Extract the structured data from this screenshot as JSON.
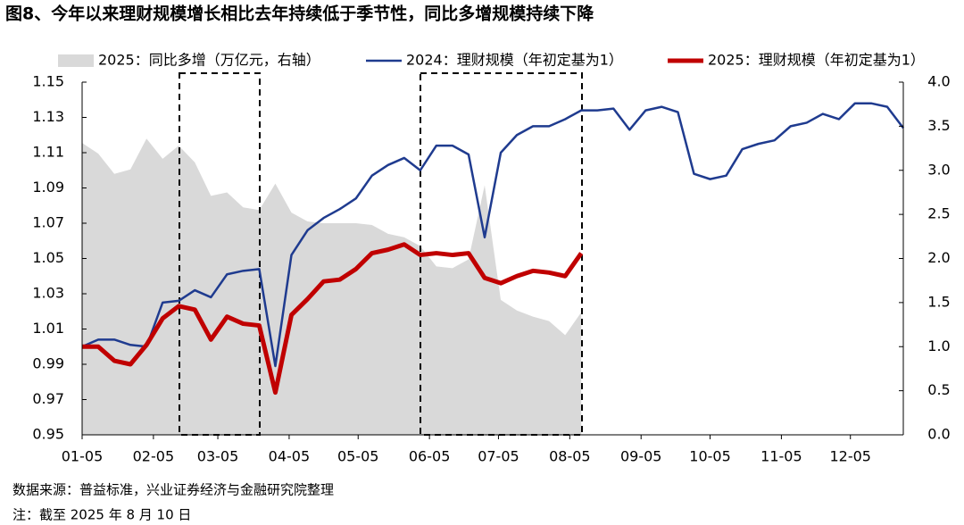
{
  "title": "图8、今年以来理财规模增长相比去年持续低于季节性，同比多增规模持续下降",
  "notes": [
    "数据来源：普益标准，兴业证券经济与金融研究院整理",
    "注：截至 2025 年 8 月 10 日"
  ],
  "chart_data": {
    "type": "line",
    "legend": "top",
    "x": [
      5,
      12,
      19,
      26,
      33,
      40,
      47,
      54,
      61,
      68,
      75,
      82,
      89,
      96,
      103,
      110,
      117,
      124,
      131,
      138,
      145,
      152,
      159,
      166,
      173,
      180,
      187,
      194,
      201,
      208,
      215,
      222,
      229,
      236,
      243,
      250,
      257,
      264,
      271,
      278,
      285,
      292,
      299,
      306,
      313,
      320,
      327,
      334,
      341,
      348,
      355,
      362
    ],
    "xlim": [
      5,
      362
    ],
    "xticks": [
      {
        "value": 5,
        "label": "01-05"
      },
      {
        "value": 36,
        "label": "02-05"
      },
      {
        "value": 64,
        "label": "03-05"
      },
      {
        "value": 95,
        "label": "04-05"
      },
      {
        "value": 125,
        "label": "05-05"
      },
      {
        "value": 156,
        "label": "06-05"
      },
      {
        "value": 186,
        "label": "07-05"
      },
      {
        "value": 217,
        "label": "08-05"
      },
      {
        "value": 248,
        "label": "09-05"
      },
      {
        "value": 278,
        "label": "10-05"
      },
      {
        "value": 309,
        "label": "11-05"
      },
      {
        "value": 339,
        "label": "12-05"
      }
    ],
    "ylim": [
      0.95,
      1.15
    ],
    "yticks": [
      0.95,
      0.97,
      0.99,
      1.01,
      1.03,
      1.05,
      1.07,
      1.09,
      1.11,
      1.13,
      1.15
    ],
    "y2lim": [
      0,
      4
    ],
    "y2ticks": [
      {
        "value": 0,
        "label": "0.0"
      },
      0.5,
      {
        "value": 1,
        "label": "1.0"
      },
      1.5,
      {
        "value": 2,
        "label": "2.0"
      },
      2.5,
      {
        "value": 3,
        "label": "3.0"
      },
      3.5,
      {
        "value": 4,
        "label": "4.0"
      }
    ],
    "series": [
      {
        "name": "2025：同比多增（万亿元，右轴）",
        "type": "area",
        "axis": "y2",
        "color": "#d9d9d9",
        "values": [
          3.31,
          3.19,
          2.96,
          3.01,
          3.36,
          3.13,
          3.28,
          3.09,
          2.71,
          2.75,
          2.58,
          2.55,
          2.85,
          2.52,
          2.42,
          2.4,
          2.4,
          2.4,
          2.38,
          2.28,
          2.24,
          2.14,
          1.91,
          1.89,
          1.99,
          2.83,
          1.53,
          1.41,
          1.34,
          1.29,
          1.13,
          1.39,
          null,
          null,
          null,
          null,
          null,
          null,
          null,
          null,
          null,
          null,
          null,
          null,
          null,
          null,
          null,
          null,
          null,
          null,
          null,
          null
        ]
      },
      {
        "name": "2024：理财规模（年初定基为1）",
        "type": "line",
        "color": "#1f3b8f",
        "values": [
          1.0,
          1.004,
          1.004,
          1.001,
          1.0,
          1.025,
          1.026,
          1.032,
          1.028,
          1.041,
          1.043,
          1.044,
          0.989,
          1.052,
          1.066,
          1.073,
          1.078,
          1.084,
          1.097,
          1.103,
          1.107,
          1.1,
          1.114,
          1.114,
          1.109,
          1.062,
          1.11,
          1.12,
          1.125,
          1.125,
          1.129,
          1.134,
          1.134,
          1.135,
          1.123,
          1.134,
          1.136,
          1.133,
          1.098,
          1.095,
          1.097,
          1.112,
          1.115,
          1.117,
          1.125,
          1.127,
          1.132,
          1.129,
          1.138,
          1.138,
          1.136,
          1.124
        ]
      },
      {
        "name": "2025：理财规模（年初定基为1）",
        "type": "line",
        "color": "#c00000",
        "values": [
          1.0,
          1.0,
          0.992,
          0.99,
          1.001,
          1.016,
          1.023,
          1.021,
          1.004,
          1.017,
          1.013,
          1.012,
          0.974,
          1.018,
          1.027,
          1.037,
          1.038,
          1.044,
          1.053,
          1.055,
          1.058,
          1.052,
          1.053,
          1.052,
          1.053,
          1.039,
          1.036,
          1.04,
          1.043,
          1.042,
          1.04,
          1.053,
          null,
          null,
          null,
          null,
          null,
          null,
          null,
          null,
          null,
          null,
          null,
          null,
          null,
          null,
          null,
          null,
          null,
          null,
          null,
          null
        ]
      }
    ]
  }
}
